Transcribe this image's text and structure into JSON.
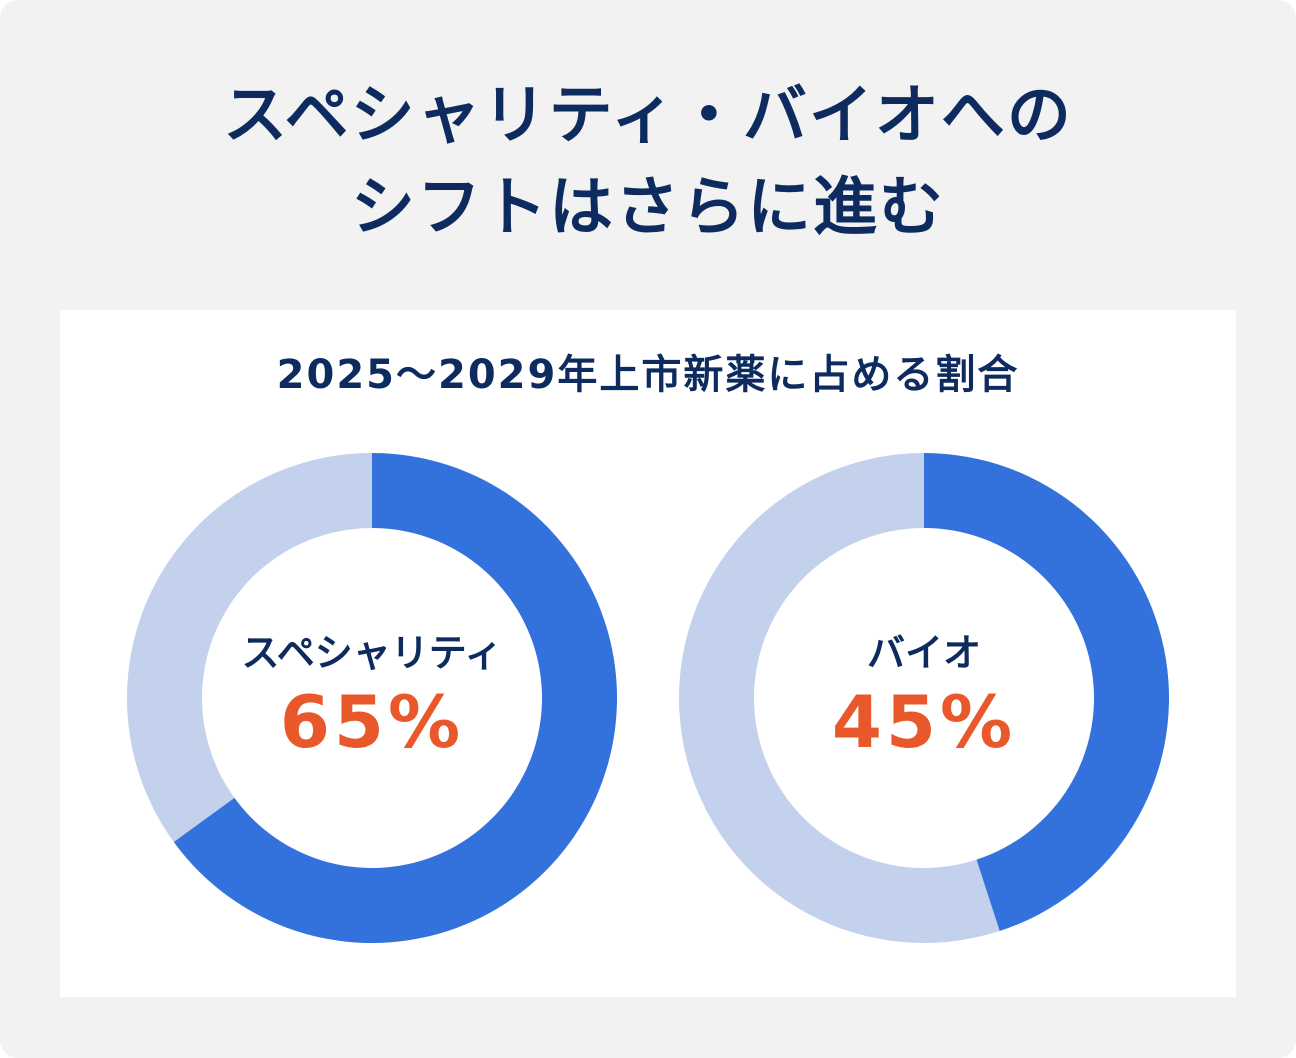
{
  "title": {
    "line1": "スペシャリティ・バイオへの",
    "line2": "シフトはさらに進む"
  },
  "colors": {
    "filled": "#3371dc",
    "remainder": "#c3d1ec",
    "text": "#0d2b5e",
    "value": "#e8582a"
  },
  "chart_data": [
    {
      "type": "pie",
      "subtitle": "2025〜2029年上市新薬に占める割合",
      "label": "スペシャリティ",
      "value": 65,
      "value_label": "65%",
      "unit": "%"
    },
    {
      "type": "pie",
      "label": "バイオ",
      "value": 45,
      "value_label": "45%",
      "unit": "%"
    }
  ]
}
